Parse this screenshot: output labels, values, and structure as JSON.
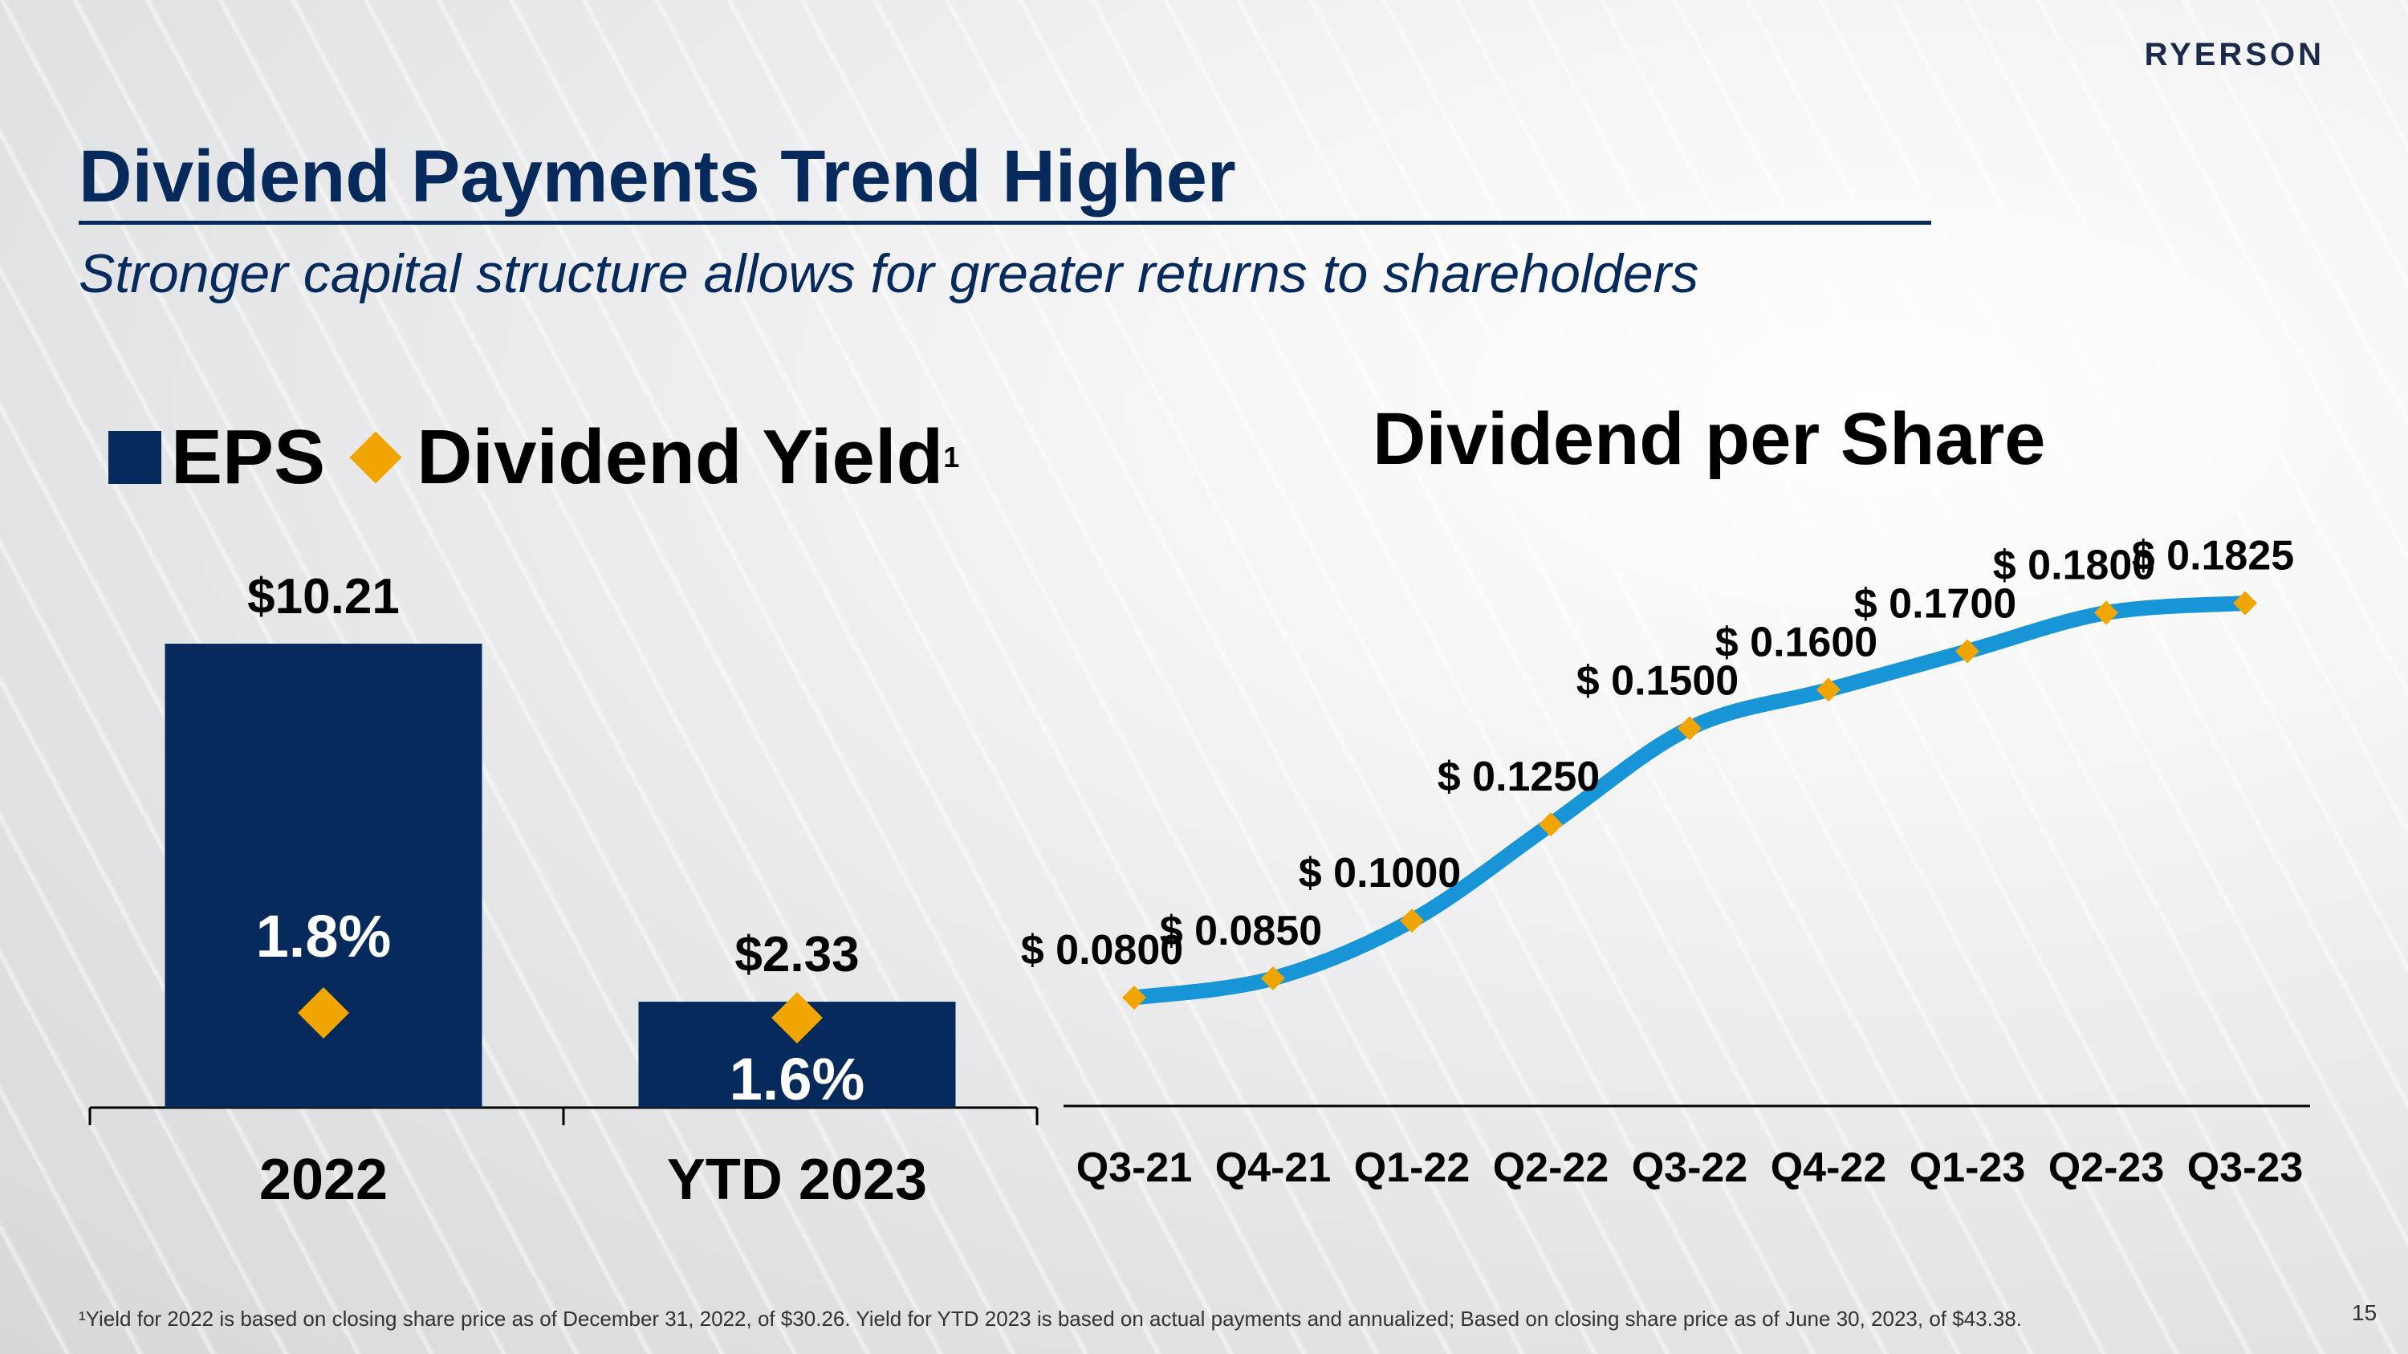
{
  "brand": "RYERSON",
  "title": "Dividend Payments Trend Higher",
  "subtitle": "Stronger capital structure allows for greater returns to shareholders",
  "legend": {
    "eps": "EPS",
    "yield": "Dividend Yield",
    "yield_sup": "1"
  },
  "right_title": "Dividend per Share",
  "footnote": "¹Yield for 2022 is based on closing share price as of December 31, 2022, of $30.26. Yield for YTD 2023 is based on actual payments and annualized; Based on closing share price as of June 30, 2023, of $43.38.",
  "page_number": "15",
  "colors": {
    "navy": "#062a5c",
    "gold": "#f0a500",
    "line": "#1795d6",
    "text": "#000000"
  },
  "chart_data": [
    {
      "type": "bar",
      "categories": [
        "2022",
        "YTD 2023"
      ],
      "series": [
        {
          "name": "EPS",
          "values": [
            10.21,
            2.33
          ],
          "labels": [
            "$10.21",
            "$2.33"
          ]
        },
        {
          "name": "Dividend Yield",
          "values": [
            1.8,
            1.6
          ],
          "labels": [
            "1.8%",
            "1.6%"
          ]
        }
      ],
      "ylim_eps": [
        0,
        10.21
      ],
      "legend_position": "top-left"
    },
    {
      "type": "line",
      "title": "Dividend per Share",
      "categories": [
        "Q3-21",
        "Q4-21",
        "Q1-22",
        "Q2-22",
        "Q3-22",
        "Q4-22",
        "Q1-23",
        "Q2-23",
        "Q3-23"
      ],
      "values": [
        0.08,
        0.085,
        0.1,
        0.125,
        0.15,
        0.16,
        0.17,
        0.18,
        0.1825
      ],
      "labels": [
        "$ 0.0800",
        "$ 0.0850",
        "$ 0.1000",
        "$ 0.1250",
        "$ 0.1500",
        "$ 0.1600",
        "$ 0.1700",
        "$ 0.1800",
        "$ 0.1825"
      ],
      "grid": false
    }
  ]
}
